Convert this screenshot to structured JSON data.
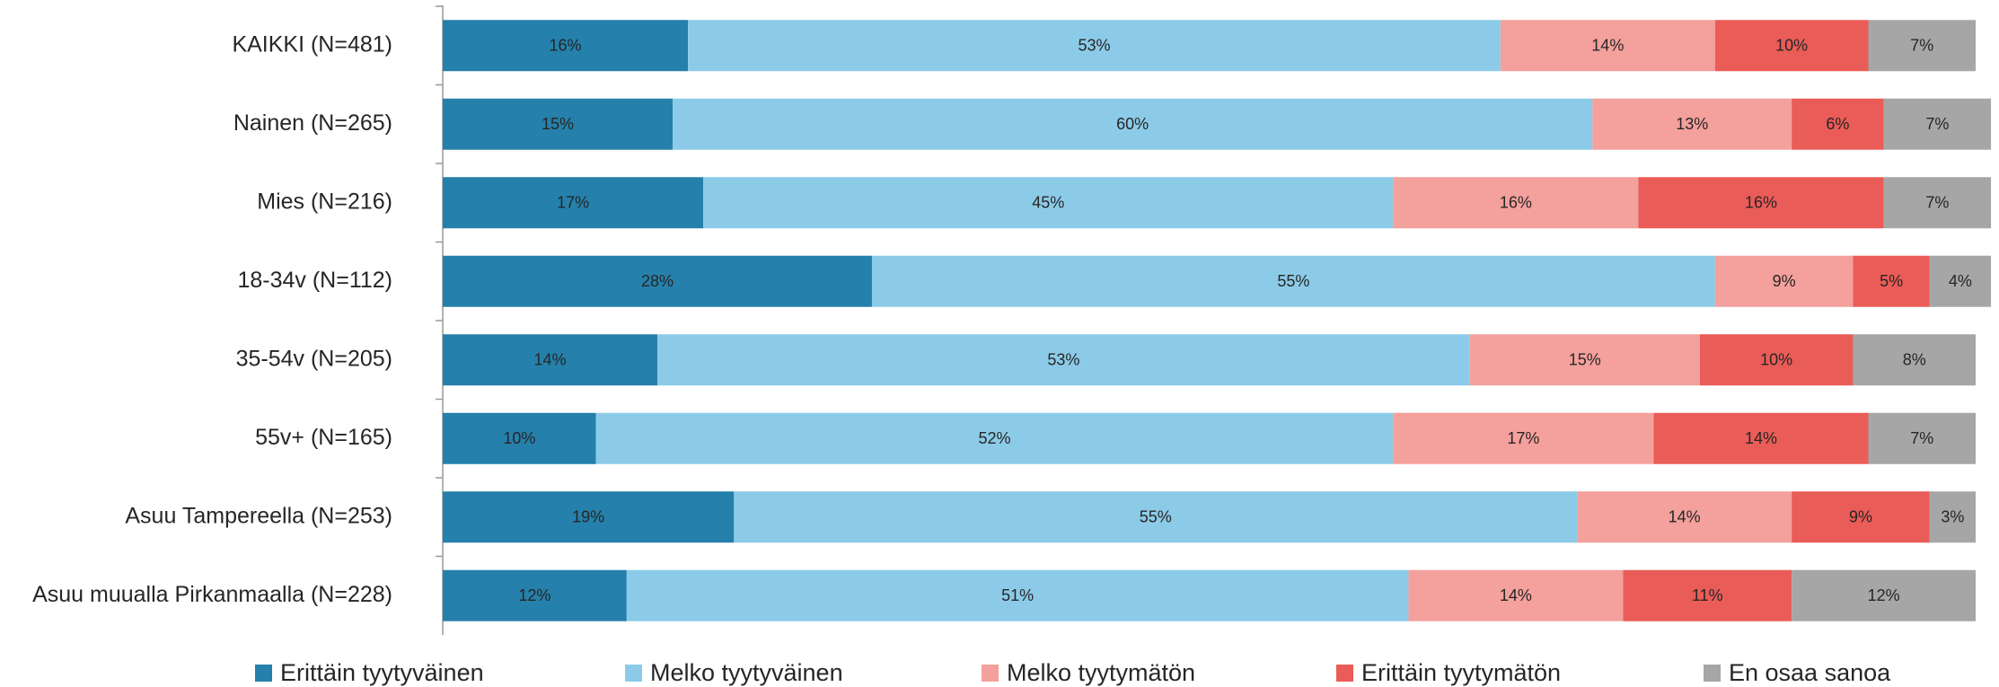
{
  "chart_data": {
    "type": "stacked-bar-horizontal",
    "categories": [
      "KAIKKI (N=481)",
      "Nainen (N=265)",
      "Mies (N=216)",
      "18-34v (N=112)",
      "35-54v (N=205)",
      "55v+ (N=165)",
      "Asuu Tampereella (N=253)",
      "Asuu muualla Pirkanmaalla (N=228)"
    ],
    "series": [
      {
        "name": "Erittäin tyytyväinen",
        "color": "#2580ab",
        "values": [
          16,
          15,
          17,
          28,
          14,
          10,
          19,
          12
        ],
        "value_labels": [
          "16%",
          "15%",
          "17%",
          "28%",
          "14%",
          "10%",
          "19%",
          "12%"
        ]
      },
      {
        "name": "Melko tyytyväinen",
        "color": "#8ccbe8",
        "values": [
          53,
          60,
          45,
          55,
          53,
          52,
          55,
          51
        ],
        "value_labels": [
          "53%",
          "60%",
          "45%",
          "55%",
          "53%",
          "52%",
          "55%",
          "51%"
        ]
      },
      {
        "name": "Melko tyytymätön",
        "color": "#f4a09c",
        "values": [
          14,
          13,
          16,
          9,
          15,
          17,
          14,
          14
        ],
        "value_labels": [
          "14%",
          "13%",
          "16%",
          "9%",
          "15%",
          "17%",
          "14%",
          "14%"
        ]
      },
      {
        "name": "Erittäin tyytymätön",
        "color": "#ea5c57",
        "values": [
          10,
          6,
          16,
          5,
          10,
          14,
          9,
          11
        ],
        "value_labels": [
          "10%",
          "6%",
          "16%",
          "5%",
          "10%",
          "14%",
          "9%",
          "11%"
        ]
      },
      {
        "name": "En osaa sanoa",
        "color": "#a6a6a6",
        "values": [
          7,
          7,
          7,
          4,
          8,
          7,
          3,
          12
        ],
        "value_labels": [
          "7%",
          "7%",
          "7%",
          "4%",
          "8%",
          "7%",
          "3%",
          "12%"
        ]
      }
    ],
    "xlim": [
      0,
      100
    ],
    "legend": "bottom"
  }
}
